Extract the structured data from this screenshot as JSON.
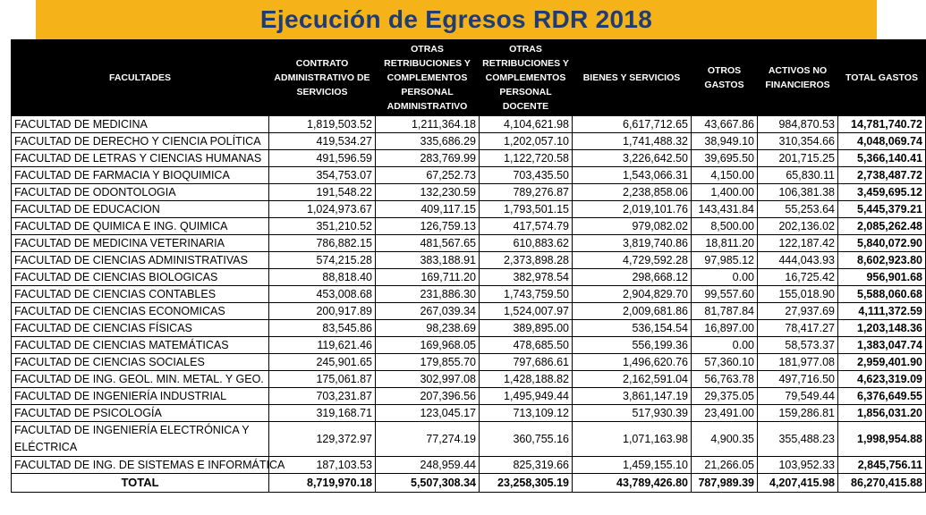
{
  "title": "Ejecución de Egresos RDR 2018",
  "headers": [
    "FACULTADES",
    "CONTRATO ADMINISTRATIVO DE SERVICIOS",
    "OTRAS RETRIBUCIONES Y COMPLEMENTOS PERSONAL ADMINISTRATIVO",
    "OTRAS RETRIBUCIONES Y COMPLEMENTOS PERSONAL DOCENTE",
    "BIENES Y SERVICIOS",
    "OTROS GASTOS",
    "ACTIVOS NO FINANCIEROS",
    "TOTAL GASTOS"
  ],
  "rows": [
    [
      "FACULTAD DE MEDICINA",
      "1,819,503.52",
      "1,211,364.18",
      "4,104,621.98",
      "6,617,712.65",
      "43,667.86",
      "984,870.53",
      "14,781,740.72"
    ],
    [
      "FACULTAD DE DERECHO Y CIENCIA POLÍTICA",
      "419,534.27",
      "335,686.29",
      "1,202,057.10",
      "1,741,488.32",
      "38,949.10",
      "310,354.66",
      "4,048,069.74"
    ],
    [
      "FACULTAD DE LETRAS Y CIENCIAS HUMANAS",
      "491,596.59",
      "283,769.99",
      "1,122,720.58",
      "3,226,642.50",
      "39,695.50",
      "201,715.25",
      "5,366,140.41"
    ],
    [
      "FACULTAD DE FARMACIA Y BIOQUIMICA",
      "354,753.07",
      "67,252.73",
      "703,435.50",
      "1,543,066.31",
      "4,150.00",
      "65,830.11",
      "2,738,487.72"
    ],
    [
      "FACULTAD DE ODONTOLOGIA",
      "191,548.22",
      "132,230.59",
      "789,276.87",
      "2,238,858.06",
      "1,400.00",
      "106,381.38",
      "3,459,695.12"
    ],
    [
      "FACULTAD DE EDUCACION",
      "1,024,973.67",
      "409,117.15",
      "1,793,501.15",
      "2,019,101.76",
      "143,431.84",
      "55,253.64",
      "5,445,379.21"
    ],
    [
      "FACULTAD DE QUIMICA E ING. QUIMICA",
      "351,210.52",
      "126,759.13",
      "417,574.79",
      "979,082.02",
      "8,500.00",
      "202,136.02",
      "2,085,262.48"
    ],
    [
      "FACULTAD DE MEDICINA VETERINARIA",
      "786,882.15",
      "481,567.65",
      "610,883.62",
      "3,819,740.86",
      "18,811.20",
      "122,187.42",
      "5,840,072.90"
    ],
    [
      "FACULTAD DE CIENCIAS ADMINISTRATIVAS",
      "574,215.28",
      "383,188.91",
      "2,373,898.28",
      "4,729,592.28",
      "97,985.12",
      "444,043.93",
      "8,602,923.80"
    ],
    [
      "FACULTAD DE CIENCIAS BIOLOGICAS",
      "88,818.40",
      "169,711.20",
      "382,978.54",
      "298,668.12",
      "0.00",
      "16,725.42",
      "956,901.68"
    ],
    [
      "FACULTAD DE CIENCIAS CONTABLES",
      "453,008.68",
      "231,886.30",
      "1,743,759.50",
      "2,904,829.70",
      "99,557.60",
      "155,018.90",
      "5,588,060.68"
    ],
    [
      "FACULTAD DE CIENCIAS ECONOMICAS",
      "200,917.89",
      "267,039.34",
      "1,524,007.97",
      "2,009,681.86",
      "81,787.84",
      "27,937.69",
      "4,111,372.59"
    ],
    [
      "FACULTAD DE CIENCIAS FÍSICAS",
      "83,545.86",
      "98,238.69",
      "389,895.00",
      "536,154.54",
      "16,897.00",
      "78,417.27",
      "1,203,148.36"
    ],
    [
      "FACULTAD DE CIENCIAS MATEMÁTICAS",
      "119,621.46",
      "169,968.05",
      "478,685.50",
      "556,199.36",
      "0.00",
      "58,573.37",
      "1,383,047.74"
    ],
    [
      "FACULTAD DE CIENCIAS SOCIALES",
      "245,901.65",
      "179,855.70",
      "797,686.61",
      "1,496,620.76",
      "57,360.10",
      "181,977.08",
      "2,959,401.90"
    ],
    [
      "FACULTAD DE ING. GEOL. MIN. METAL. Y GEO.",
      "175,061.87",
      "302,997.08",
      "1,428,188.82",
      "2,162,591.04",
      "56,763.78",
      "497,716.50",
      "4,623,319.09"
    ],
    [
      "FACULTAD DE INGENIERÍA INDUSTRIAL",
      "703,231.87",
      "207,396.56",
      "1,495,949.44",
      "3,861,147.19",
      "29,375.05",
      "79,549.44",
      "6,376,649.55"
    ],
    [
      "FACULTAD DE PSICOLOGÍA",
      "319,168.71",
      "123,045.17",
      "713,109.12",
      "517,930.39",
      "23,491.00",
      "159,286.81",
      "1,856,031.20"
    ],
    [
      "FACULTAD DE INGENIERÍA ELECTRÓNICA Y ELÉCTRICA",
      "129,372.97",
      "77,274.19",
      "360,755.16",
      "1,071,163.98",
      "4,900.35",
      "355,488.23",
      "1,998,954.88"
    ],
    [
      "FACULTAD DE ING. DE SISTEMAS E INFORMÁTICA",
      "187,103.53",
      "248,959.44",
      "825,319.66",
      "1,459,155.10",
      "21,266.05",
      "103,952.33",
      "2,845,756.11"
    ]
  ],
  "total": [
    "TOTAL",
    "8,719,970.18",
    "5,507,308.34",
    "23,258,305.19",
    "43,789,426.80",
    "787,989.39",
    "4,207,415.98",
    "86,270,415.88"
  ],
  "colors": {
    "title_bar": "#f5b319",
    "title_text": "#1f3c73",
    "header_bg": "#000000"
  }
}
